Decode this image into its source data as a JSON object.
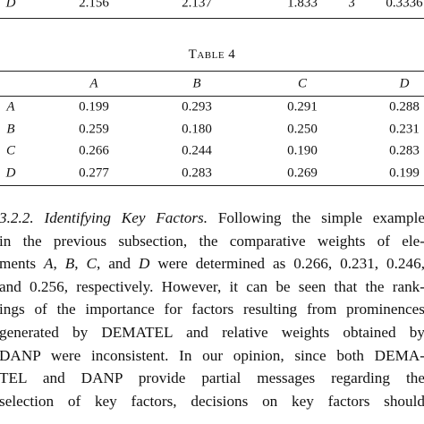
{
  "previous_table": {
    "row": [
      "D",
      "2.156",
      "2.137",
      "1.833",
      "3",
      "0.3336"
    ]
  },
  "table": {
    "caption": "Table 4",
    "header": [
      "A",
      "B",
      "C",
      "D"
    ],
    "rows": [
      [
        "A",
        "0.199",
        "0.293",
        "0.291",
        "0.288"
      ],
      [
        "B",
        "0.259",
        "0.180",
        "0.250",
        "0.231"
      ],
      [
        "C",
        "0.266",
        "0.244",
        "0.190",
        "0.283"
      ],
      [
        "D",
        "0.277",
        "0.283",
        "0.269",
        "0.199"
      ]
    ]
  },
  "paragraph": {
    "heading": "3.2.2. Identifying Key Factors.",
    "lines": [
      " Following the simple example",
      "in the previous subsection, the comparative weights of ele-",
      [
        "ments ",
        "A",
        ", ",
        "B",
        ", ",
        "C",
        ", and ",
        "D",
        " were determined as 0.266, 0.231, 0.246,"
      ],
      "and 0.256, respectively. However, it can be seen that the rank-",
      "ings of the importance for factors resulting from prominences",
      "generated by DEMATEL and relative weights obtained by",
      "DANP were inconsistent. In our opinion, since both DEMA-",
      "TEL and DANP provide partial messages regarding the",
      "selection of key factors, decisions on key factors should"
    ]
  }
}
